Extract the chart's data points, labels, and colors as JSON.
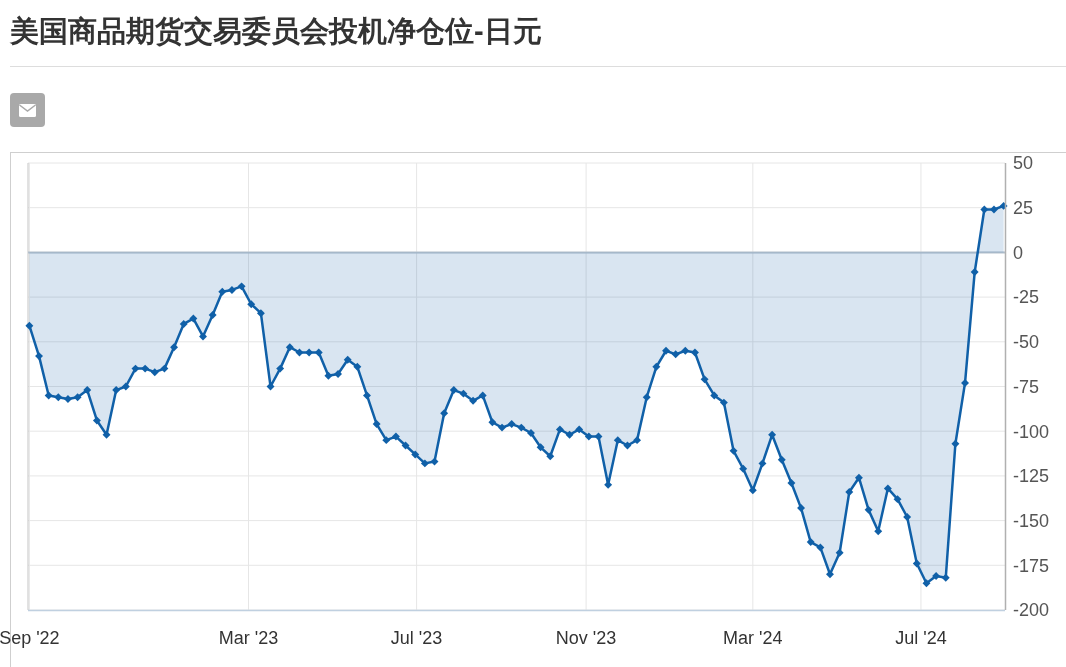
{
  "chart_data": {
    "type": "area",
    "title": "美国商品期货交易委员会投机净仓位-日元",
    "x": [
      "2022-09-23",
      "2022-09-30",
      "2022-10-07",
      "2022-10-14",
      "2022-10-21",
      "2022-10-28",
      "2022-11-04",
      "2022-11-11",
      "2022-11-18",
      "2022-11-25",
      "2022-12-02",
      "2022-12-09",
      "2022-12-16",
      "2022-12-23",
      "2022-12-30",
      "2023-01-06",
      "2023-01-13",
      "2023-01-20",
      "2023-01-27",
      "2023-02-03",
      "2023-02-10",
      "2023-02-17",
      "2023-02-24",
      "2023-03-03",
      "2023-03-10",
      "2023-03-17",
      "2023-03-24",
      "2023-03-31",
      "2023-04-07",
      "2023-04-14",
      "2023-04-21",
      "2023-04-28",
      "2023-05-05",
      "2023-05-12",
      "2023-05-19",
      "2023-05-26",
      "2023-06-02",
      "2023-06-09",
      "2023-06-16",
      "2023-06-23",
      "2023-06-30",
      "2023-07-07",
      "2023-07-14",
      "2023-07-21",
      "2023-07-28",
      "2023-08-04",
      "2023-08-11",
      "2023-08-18",
      "2023-08-25",
      "2023-09-01",
      "2023-09-08",
      "2023-09-15",
      "2023-09-22",
      "2023-09-29",
      "2023-10-06",
      "2023-10-13",
      "2023-10-20",
      "2023-10-27",
      "2023-11-03",
      "2023-11-10",
      "2023-11-17",
      "2023-11-24",
      "2023-12-01",
      "2023-12-08",
      "2023-12-15",
      "2023-12-22",
      "2023-12-29",
      "2024-01-05",
      "2024-01-12",
      "2024-01-19",
      "2024-01-26",
      "2024-02-02",
      "2024-02-09",
      "2024-02-16",
      "2024-02-23",
      "2024-03-01",
      "2024-03-08",
      "2024-03-15",
      "2024-03-22",
      "2024-03-29",
      "2024-04-05",
      "2024-04-12",
      "2024-04-19",
      "2024-04-26",
      "2024-05-03",
      "2024-05-10",
      "2024-05-17",
      "2024-05-24",
      "2024-05-31",
      "2024-06-07",
      "2024-06-14",
      "2024-06-21",
      "2024-06-28",
      "2024-07-05",
      "2024-07-12",
      "2024-07-19",
      "2024-07-26",
      "2024-08-02",
      "2024-08-09",
      "2024-08-16",
      "2024-08-23",
      "2024-08-30"
    ],
    "values": [
      -41,
      -58,
      -80,
      -81,
      -82,
      -81,
      -77,
      -94,
      -102,
      -77,
      -75,
      -65,
      -65,
      -67,
      -65,
      -53,
      -40,
      -37,
      -47,
      -35,
      -22,
      -21,
      -19,
      -29,
      -34,
      -75,
      -65,
      -53,
      -56,
      -56,
      -56,
      -69,
      -68,
      -60,
      -64,
      -80,
      -96,
      -105,
      -103,
      -108,
      -113,
      -118,
      -117,
      -90,
      -77,
      -79,
      -83,
      -80,
      -95,
      -98,
      -96,
      -98,
      -101,
      -109,
      -114,
      -99,
      -102,
      -99,
      -103,
      -103,
      -130,
      -105,
      -108,
      -105,
      -81,
      -64,
      -55,
      -57,
      -55,
      -56,
      -71,
      -80,
      -84,
      -111,
      -121,
      -133,
      -118,
      -102,
      -116,
      -129,
      -143,
      -162,
      -165,
      -180,
      -168,
      -134,
      -126,
      -144,
      -156,
      -132,
      -138,
      -148,
      -174,
      -185,
      -181,
      -182,
      -107,
      -73,
      -11,
      24,
      24,
      26
    ],
    "color": "#1060a8",
    "marker": "diamond",
    "xlim": [
      "2022-09-22",
      "2024-08-31"
    ],
    "xticks": [
      {
        "value": "2022-09-23",
        "label": "Sep '22"
      },
      {
        "value": "2023-03-01",
        "label": "Mar '23"
      },
      {
        "value": "2023-07-01",
        "label": "Jul '23"
      },
      {
        "value": "2023-11-01",
        "label": "Nov '23"
      },
      {
        "value": "2024-03-01",
        "label": "Mar '24"
      },
      {
        "value": "2024-07-01",
        "label": "Jul '24"
      }
    ],
    "ylim": [
      -200,
      50
    ],
    "yticks": [
      -200,
      -175,
      -150,
      -125,
      -100,
      -75,
      -50,
      -25,
      0,
      25,
      50
    ],
    "grid": true,
    "ref_lines": [
      {
        "axis": "y",
        "value": 0,
        "color": "#b4c0cc"
      }
    ]
  }
}
